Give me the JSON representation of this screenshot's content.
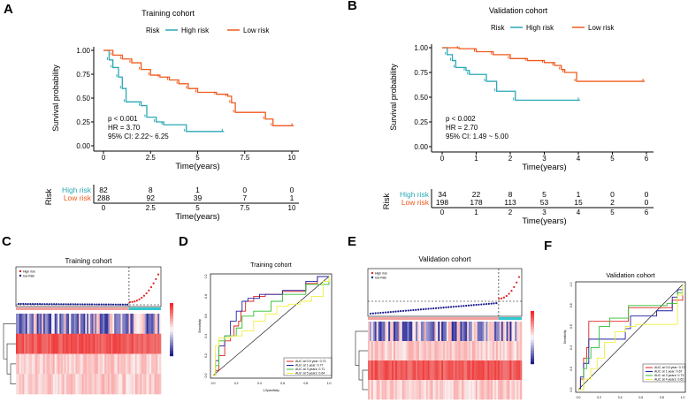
{
  "colors": {
    "high_risk": "#2aa9b5",
    "low_risk": "#f05a1e",
    "heat_high": "#ee2222",
    "heat_low": "#1a1a8c"
  },
  "panels": {
    "A": "A",
    "B": "B",
    "C": "C",
    "D": "D",
    "E": "E",
    "F": "F"
  },
  "chart_data": [
    {
      "panel": "A",
      "type": "line",
      "subtype": "kaplan-meier",
      "title": "Training cohort",
      "legend_title": "Risk",
      "legend_position": "top",
      "xlabel": "Time(years)",
      "ylabel": "Survival probability",
      "xlim": [
        0,
        10
      ],
      "ylim": [
        0,
        1
      ],
      "xticks": [
        "0",
        "2.5",
        "5",
        "7.5",
        "10"
      ],
      "xtick_values": [
        0,
        2.5,
        5,
        7.5,
        10
      ],
      "yticks": [
        "0.00",
        "0.25",
        "0.50",
        "0.75",
        "1.00"
      ],
      "annotations": [
        "p < 0.001",
        "HR = 3.70",
        "95% CI: 2.22~ 6.25"
      ],
      "series": [
        {
          "name": "High risk",
          "points": [
            [
              0,
              1
            ],
            [
              0.3,
              0.9
            ],
            [
              0.5,
              0.82
            ],
            [
              0.8,
              0.72
            ],
            [
              1.0,
              0.6
            ],
            [
              1.2,
              0.46
            ],
            [
              2.0,
              0.42
            ],
            [
              2.3,
              0.3
            ],
            [
              2.8,
              0.25
            ],
            [
              3.2,
              0.22
            ],
            [
              4.4,
              0.15
            ],
            [
              6.4,
              0.15
            ]
          ]
        },
        {
          "name": "Low risk",
          "points": [
            [
              0,
              1
            ],
            [
              0.5,
              0.95
            ],
            [
              1,
              0.91
            ],
            [
              1.5,
              0.87
            ],
            [
              2,
              0.8
            ],
            [
              2.5,
              0.74
            ],
            [
              3,
              0.72
            ],
            [
              3.5,
              0.69
            ],
            [
              4,
              0.65
            ],
            [
              4.5,
              0.6
            ],
            [
              5,
              0.56
            ],
            [
              6,
              0.54
            ],
            [
              6.6,
              0.52
            ],
            [
              6.8,
              0.45
            ],
            [
              7,
              0.35
            ],
            [
              8.6,
              0.28
            ],
            [
              9,
              0.21
            ],
            [
              10.1,
              0.21
            ]
          ]
        }
      ],
      "risk_table": {
        "title": "Risk",
        "xlabel": "Time(years)",
        "rows": [
          {
            "name": "High risk",
            "values": [
              "82",
              "8",
              "1",
              "0",
              "0"
            ]
          },
          {
            "name": "Low risk",
            "values": [
              "288",
              "92",
              "39",
              "7",
              "1"
            ]
          }
        ]
      }
    },
    {
      "panel": "B",
      "type": "line",
      "subtype": "kaplan-meier",
      "title": "Validation cohort",
      "legend_title": "Risk",
      "legend_position": "top",
      "xlabel": "Time(years)",
      "ylabel": "Survival probability",
      "xlim": [
        0,
        6
      ],
      "ylim": [
        0,
        1
      ],
      "xticks": [
        "0",
        "1",
        "2",
        "3",
        "4",
        "5",
        "6"
      ],
      "xtick_values": [
        0,
        1,
        2,
        3,
        4,
        5,
        6
      ],
      "yticks": [
        "0.00",
        "0.25",
        "0.50",
        "0.75",
        "1.00"
      ],
      "annotations": [
        "p < 0.002",
        "HR = 2.70",
        "95% CI: 1.49 ~ 5.00"
      ],
      "series": [
        {
          "name": "High risk",
          "points": [
            [
              0,
              1
            ],
            [
              0.15,
              0.93
            ],
            [
              0.3,
              0.87
            ],
            [
              0.4,
              0.8
            ],
            [
              0.7,
              0.77
            ],
            [
              0.8,
              0.73
            ],
            [
              1.3,
              0.66
            ],
            [
              1.6,
              0.56
            ],
            [
              2.15,
              0.47
            ],
            [
              4.05,
              0.47
            ]
          ]
        },
        {
          "name": "Low risk",
          "points": [
            [
              0,
              1
            ],
            [
              0.5,
              0.99
            ],
            [
              1,
              0.96
            ],
            [
              1.5,
              0.93
            ],
            [
              2,
              0.89
            ],
            [
              2.5,
              0.87
            ],
            [
              3,
              0.85
            ],
            [
              3.3,
              0.82
            ],
            [
              3.5,
              0.78
            ],
            [
              3.6,
              0.75
            ],
            [
              3.95,
              0.66
            ],
            [
              5.95,
              0.66
            ]
          ]
        }
      ],
      "risk_table": {
        "title": "Risk",
        "xlabel": "Time(years)",
        "rows": [
          {
            "name": "High risk",
            "values": [
              "34",
              "22",
              "8",
              "5",
              "1",
              "0",
              "0"
            ]
          },
          {
            "name": "Low risk",
            "values": [
              "198",
              "178",
              "113",
              "53",
              "15",
              "2",
              "0"
            ]
          }
        ]
      }
    },
    {
      "panel": "C",
      "type": "heatmap",
      "title": "Training cohort",
      "legend": [
        "High risk",
        "low Risk"
      ],
      "rows": 4,
      "high_risk_fraction": 0.22
    },
    {
      "panel": "D",
      "type": "line",
      "subtype": "roc",
      "title": "Training cohort",
      "xlabel": "1-Specificity",
      "ylabel": "Sensitivity",
      "xlim": [
        0,
        1
      ],
      "ylim": [
        0,
        1
      ],
      "xticks": [
        "0.0",
        "0.2",
        "0.4",
        "0.6",
        "0.8",
        "1.0"
      ],
      "yticks": [
        "0.0",
        "0.2",
        "0.4",
        "0.6",
        "0.8",
        "1.0"
      ],
      "legend_position": "bottom-right",
      "series": [
        {
          "name": "AUC at 0.5 year: 0.73",
          "color": "#e02020",
          "points": [
            [
              0,
              0
            ],
            [
              0.02,
              0.05
            ],
            [
              0.05,
              0.2
            ],
            [
              0.08,
              0.2
            ],
            [
              0.1,
              0.35
            ],
            [
              0.15,
              0.4
            ],
            [
              0.18,
              0.5
            ],
            [
              0.22,
              0.55
            ],
            [
              0.24,
              0.65
            ],
            [
              0.28,
              0.75
            ],
            [
              0.35,
              0.8
            ],
            [
              0.45,
              0.82
            ],
            [
              0.6,
              0.85
            ],
            [
              0.8,
              0.93
            ],
            [
              0.9,
              1
            ],
            [
              1,
              1
            ]
          ]
        },
        {
          "name": "AUC at 1 year: 0.77",
          "color": "#2020a0",
          "points": [
            [
              0,
              0
            ],
            [
              0.02,
              0.15
            ],
            [
              0.05,
              0.3
            ],
            [
              0.1,
              0.4
            ],
            [
              0.15,
              0.55
            ],
            [
              0.2,
              0.65
            ],
            [
              0.25,
              0.75
            ],
            [
              0.3,
              0.78
            ],
            [
              0.4,
              0.82
            ],
            [
              0.6,
              0.86
            ],
            [
              0.8,
              0.95
            ],
            [
              0.9,
              1
            ],
            [
              1,
              1
            ]
          ]
        },
        {
          "name": "AUC at 3 years: 0.71",
          "color": "#30c030",
          "points": [
            [
              0,
              0
            ],
            [
              0.02,
              0.1
            ],
            [
              0.05,
              0.35
            ],
            [
              0.1,
              0.4
            ],
            [
              0.2,
              0.48
            ],
            [
              0.25,
              0.6
            ],
            [
              0.35,
              0.65
            ],
            [
              0.5,
              0.75
            ],
            [
              0.6,
              0.82
            ],
            [
              0.8,
              0.92
            ],
            [
              1,
              1
            ]
          ]
        },
        {
          "name": "AUC at 5 years: 0.64",
          "color": "#f0f040",
          "points": [
            [
              0,
              0
            ],
            [
              0.02,
              0.3
            ],
            [
              0.05,
              0.38
            ],
            [
              0.15,
              0.4
            ],
            [
              0.25,
              0.45
            ],
            [
              0.35,
              0.55
            ],
            [
              0.45,
              0.62
            ],
            [
              0.55,
              0.7
            ],
            [
              0.65,
              0.72
            ],
            [
              0.75,
              0.75
            ],
            [
              0.85,
              0.8
            ],
            [
              0.95,
              0.95
            ],
            [
              1,
              1
            ]
          ]
        }
      ]
    },
    {
      "panel": "E",
      "type": "heatmap",
      "title": "Validation cohort",
      "legend": [
        "High risk",
        "low Risk"
      ],
      "rows": 4,
      "high_risk_fraction": 0.15
    },
    {
      "panel": "F",
      "type": "line",
      "subtype": "roc",
      "title": "Validation cohort",
      "xlabel": "1-Specificity",
      "ylabel": "Sensitivity",
      "xlim": [
        0,
        1
      ],
      "ylim": [
        0,
        1
      ],
      "xticks": [
        "0.0",
        "0.2",
        "0.4",
        "0.6",
        "0.8",
        "1.0"
      ],
      "yticks": [
        "0.0",
        "0.2",
        "0.4",
        "0.6",
        "0.8",
        "1.0"
      ],
      "legend_position": "bottom-right",
      "series": [
        {
          "name": "AUC at 0.5 year: 0.72",
          "color": "#e02020",
          "points": [
            [
              0,
              0
            ],
            [
              0.02,
              0.1
            ],
            [
              0.05,
              0.3
            ],
            [
              0.08,
              0.4
            ],
            [
              0.1,
              0.65
            ],
            [
              0.45,
              0.65
            ],
            [
              0.48,
              0.78
            ],
            [
              0.9,
              0.78
            ],
            [
              0.9,
              0.85
            ],
            [
              1,
              0.88
            ],
            [
              1,
              1
            ]
          ]
        },
        {
          "name": "AUC at 1 year: 0.67",
          "color": "#2020a0",
          "points": [
            [
              0,
              0
            ],
            [
              0.02,
              0.12
            ],
            [
              0.05,
              0.25
            ],
            [
              0.1,
              0.48
            ],
            [
              0.4,
              0.48
            ],
            [
              0.45,
              0.58
            ],
            [
              0.5,
              0.7
            ],
            [
              0.75,
              0.75
            ],
            [
              0.9,
              0.88
            ],
            [
              0.95,
              0.95
            ],
            [
              1,
              1
            ]
          ]
        },
        {
          "name": "AUC at 3 years: 0.73",
          "color": "#30c030",
          "points": [
            [
              0,
              0
            ],
            [
              0.05,
              0.2
            ],
            [
              0.08,
              0.3
            ],
            [
              0.12,
              0.4
            ],
            [
              0.2,
              0.6
            ],
            [
              0.3,
              0.68
            ],
            [
              0.48,
              0.8
            ],
            [
              0.85,
              0.82
            ],
            [
              0.95,
              0.92
            ],
            [
              1,
              1
            ]
          ]
        },
        {
          "name": "AUC at 4 years: 0.62",
          "color": "#f0f040",
          "points": [
            [
              0,
              0
            ],
            [
              0.05,
              0.1
            ],
            [
              0.12,
              0.2
            ],
            [
              0.18,
              0.3
            ],
            [
              0.25,
              0.45
            ],
            [
              0.35,
              0.55
            ],
            [
              0.45,
              0.6
            ],
            [
              0.55,
              0.62
            ],
            [
              0.9,
              0.62
            ],
            [
              0.95,
              0.9
            ],
            [
              1,
              1
            ]
          ]
        }
      ]
    }
  ]
}
